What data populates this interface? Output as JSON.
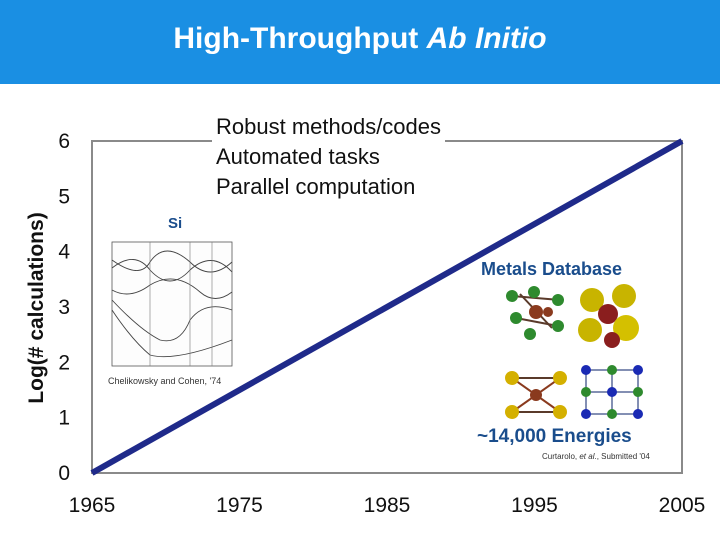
{
  "slide": {
    "title_prefix": "High-Throughput ",
    "title_italic": "Ab Initio",
    "bullets": [
      "Robust methods/codes",
      "Automated tasks",
      "Parallel computation"
    ],
    "si_label": "Si",
    "si_citation": "Chelikowsky and Cohen, '74",
    "metals_label": "Metals Database",
    "energies_label": "~14,000 Energies",
    "curtarolo_prefix": "Curtarolo, ",
    "curtarolo_italic": "et al",
    "curtarolo_suffix": "., Submitted '04"
  },
  "colors": {
    "title_bar": "#1a8fe3",
    "line": "#1f2a8a",
    "label_blue": "#1a4d8c"
  },
  "chart_data": {
    "type": "line",
    "title": "",
    "xlabel": "",
    "ylabel": "Log(# calculations)",
    "x_ticks": [
      "1965",
      "1975",
      "1985",
      "1995",
      "2005"
    ],
    "y_ticks": [
      "0",
      "1",
      "2",
      "3",
      "4",
      "5",
      "6"
    ],
    "xlim": [
      1965,
      2005
    ],
    "ylim": [
      0,
      6
    ],
    "grid": false,
    "series": [
      {
        "x": [
          1965,
          2005
        ],
        "y": [
          0,
          6
        ]
      }
    ]
  }
}
